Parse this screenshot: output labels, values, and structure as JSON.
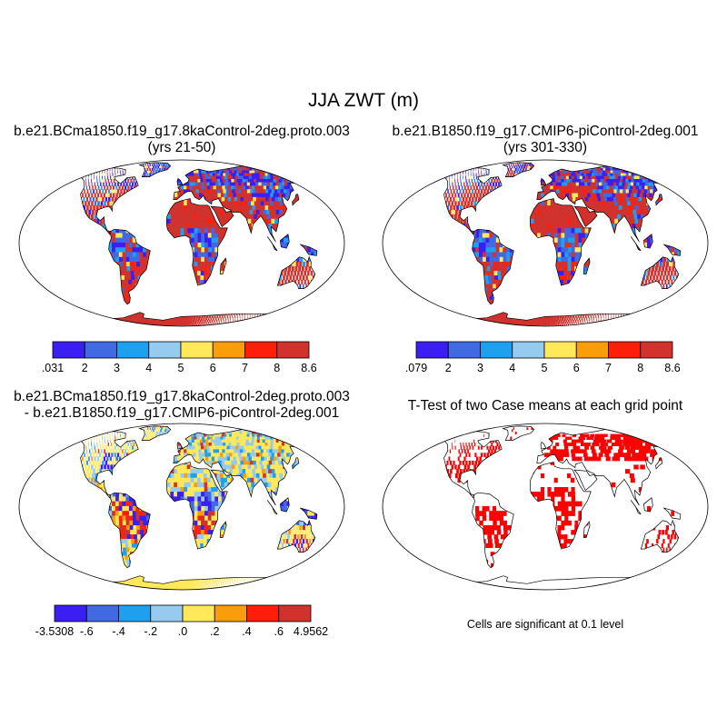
{
  "figure": {
    "title": "JJA ZWT (m)"
  },
  "panels": [
    {
      "id": "case1",
      "title_line1": "b.e21.BCma1850.f19_g17.8kaControl-2deg.proto.003",
      "title_line2": "(yrs 21-50)",
      "type": "field",
      "colorbar": {
        "colors": [
          "#3a1ef2",
          "#4169e1",
          "#1ea0f0",
          "#96cbef",
          "#ffe95a",
          "#f99d0a",
          "#ff1e0a",
          "#d2322d"
        ],
        "labels": [
          ".031",
          "2",
          "3",
          "4",
          "5",
          "6",
          "7",
          "8",
          "8.6"
        ]
      }
    },
    {
      "id": "case2",
      "title_line1": "b.e21.B1850.f19_g17.CMIP6-piControl-2deg.001",
      "title_line2": "(yrs 301-330)",
      "type": "field",
      "colorbar": {
        "colors": [
          "#3a1ef2",
          "#4169e1",
          "#1ea0f0",
          "#96cbef",
          "#ffe95a",
          "#f99d0a",
          "#ff1e0a",
          "#d2322d"
        ],
        "labels": [
          ".079",
          "2",
          "3",
          "4",
          "5",
          "6",
          "7",
          "8",
          "8.6"
        ]
      }
    },
    {
      "id": "difference",
      "title_line1": "b.e21.BCma1850.f19_g17.8kaControl-2deg.proto.003",
      "title_line2": "- b.e21.B1850.f19_g17.CMIP6-piControl-2deg.001",
      "type": "difference",
      "colorbar": {
        "colors": [
          "#3a1ef2",
          "#4169e1",
          "#1ea0f0",
          "#96cbef",
          "#ffe95a",
          "#f99d0a",
          "#ff1e0a",
          "#d2322d"
        ],
        "labels": [
          "-3.5308",
          "-.6",
          "-.4",
          "-.2",
          ".0",
          ".2",
          ".4",
          ".6",
          "4.9562"
        ]
      }
    },
    {
      "id": "ttest",
      "title_line1": "T-Test of two Case means at each grid point",
      "title_line2": "",
      "type": "significance",
      "note": "Cells are significant at 0.1 level",
      "colors": {
        "significant": "#ff0000",
        "coast": "#000000"
      }
    }
  ]
}
